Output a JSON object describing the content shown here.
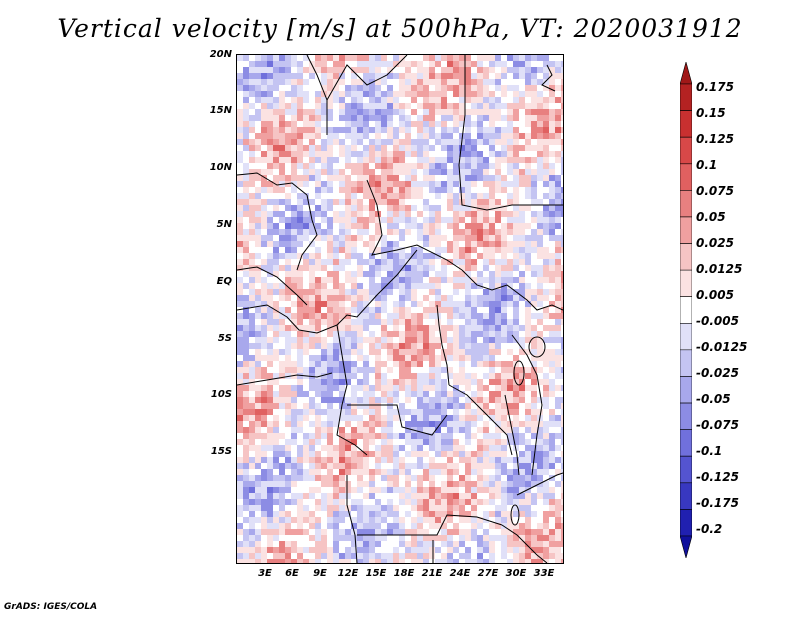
{
  "title": "Vertical velocity [m/s] at 500hPa, VT: 2020031912",
  "footer": "GrADS: IGES/COLA",
  "map": {
    "region": "Central Africa",
    "lat_labels": [
      "20N",
      "15N",
      "10N",
      "5N",
      "EQ",
      "5S",
      "10S",
      "15S"
    ],
    "lon_labels": [
      "3E",
      "6E",
      "9E",
      "12E",
      "15E",
      "18E",
      "21E",
      "24E",
      "27E",
      "30E",
      "33E"
    ]
  },
  "colorbar": {
    "labels": [
      "0.175",
      "0.15",
      "0.125",
      "0.1",
      "0.075",
      "0.05",
      "0.025",
      "0.0125",
      "0.005",
      "-0.005",
      "-0.0125",
      "-0.025",
      "-0.05",
      "-0.075",
      "-0.1",
      "-0.125",
      "-0.175",
      "-0.2"
    ],
    "colors": [
      "#a01818",
      "#b42222",
      "#c83030",
      "#d84848",
      "#e06060",
      "#e88080",
      "#f0a0a0",
      "#f6c4c4",
      "#fbe2e2",
      "#ffffff",
      "#e0e0f8",
      "#c4c4f2",
      "#a8a8ec",
      "#8c8ce4",
      "#7070dc",
      "#5454d0",
      "#3838c0",
      "#2020b0",
      "#10109c"
    ]
  }
}
